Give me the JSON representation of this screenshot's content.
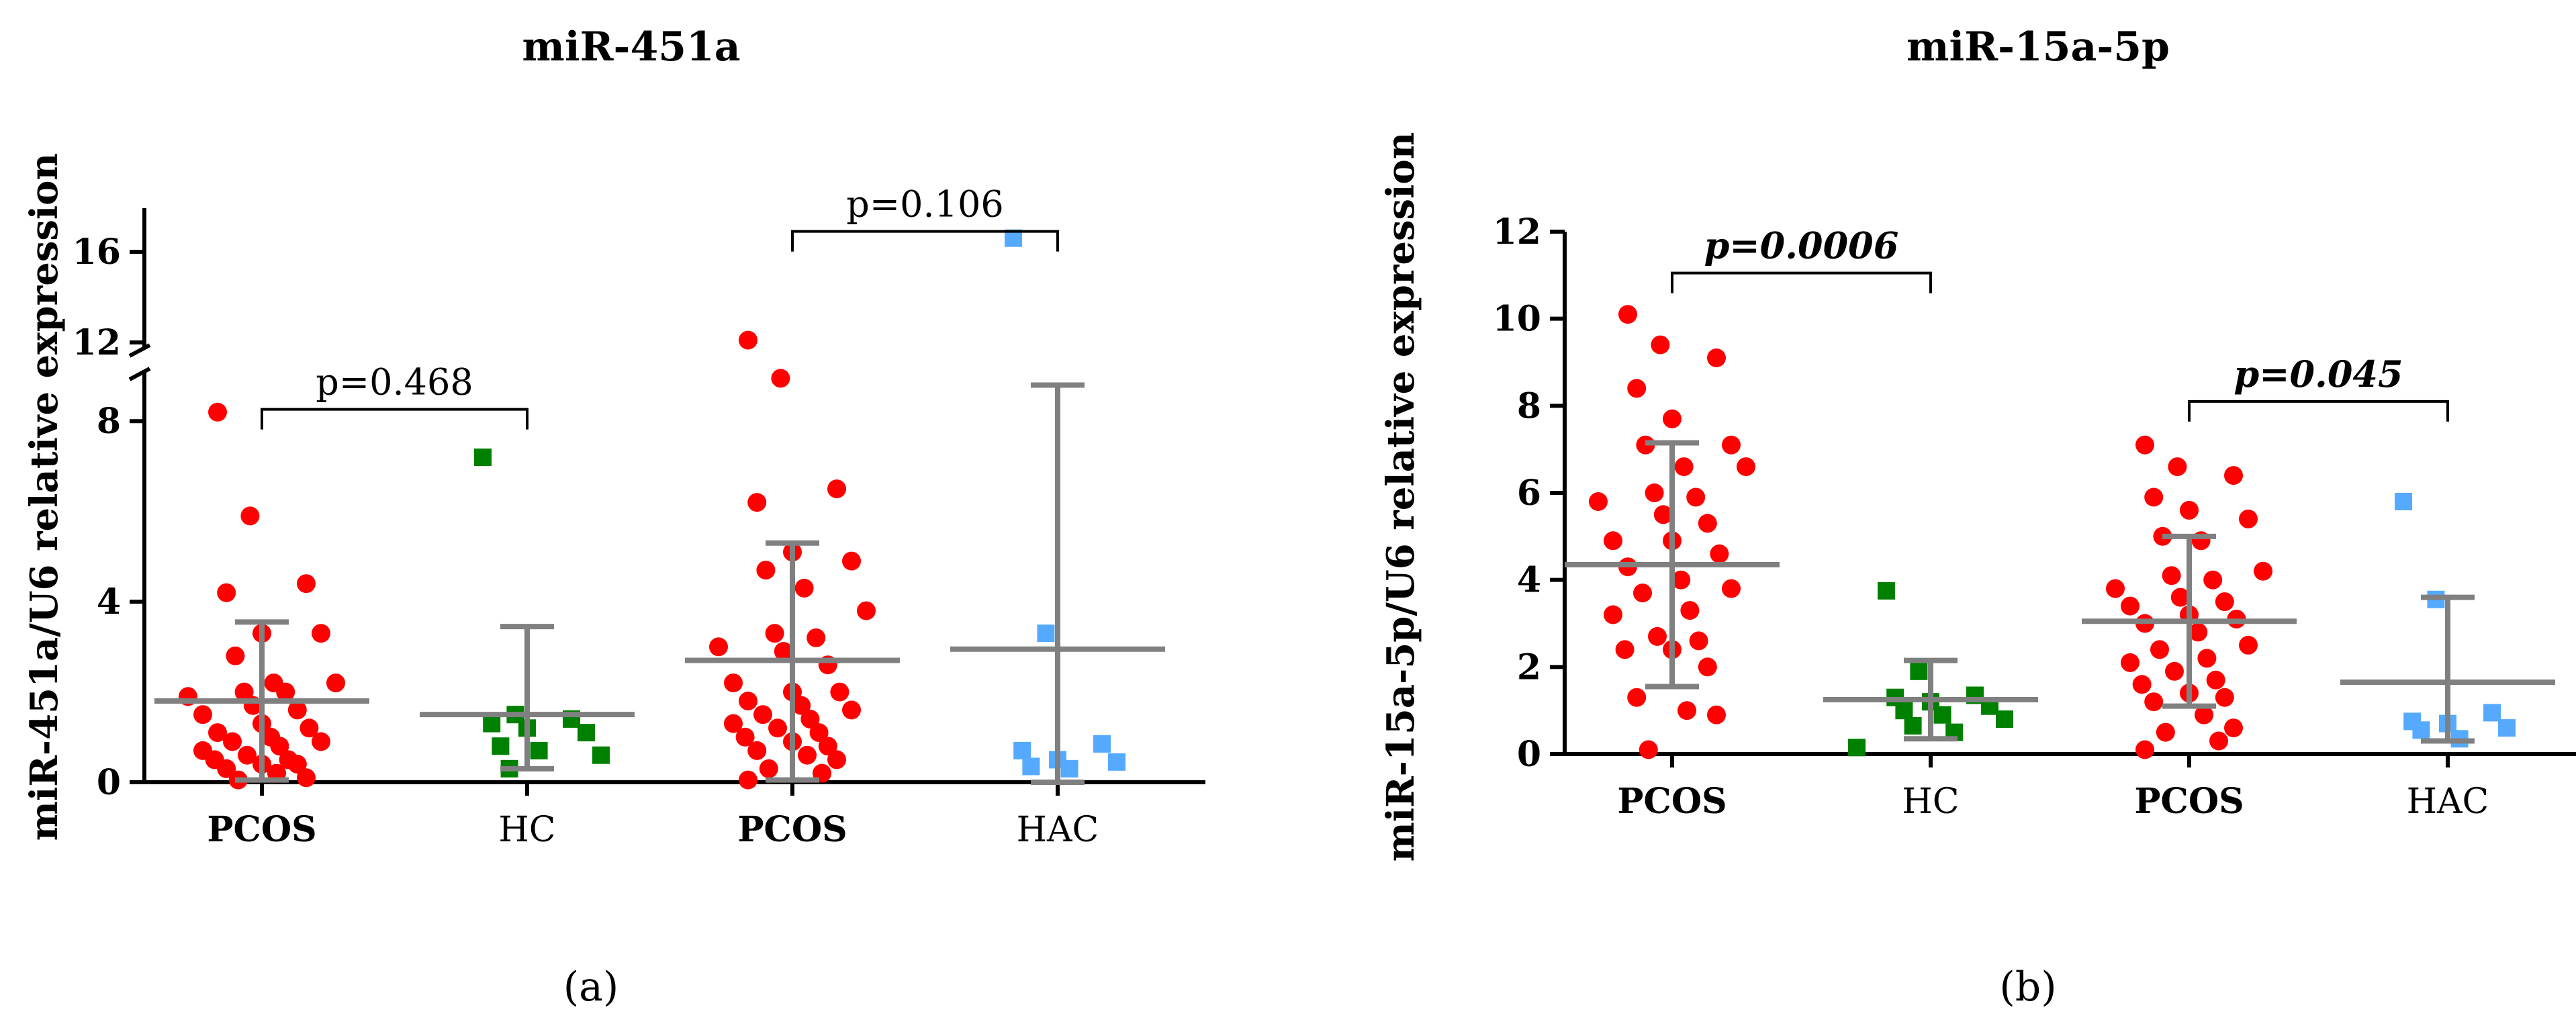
{
  "figure": {
    "panel_labels": [
      "(a)",
      "(b)"
    ]
  },
  "chart_data": [
    {
      "type": "scatter",
      "title": "miR-451a",
      "ylabel": "miR-451a/U6 relative expression",
      "xlabel": "",
      "ylim": [
        0,
        17.5
      ],
      "axis_break": [
        9,
        12
      ],
      "yticks": [
        0,
        4,
        8,
        12,
        16
      ],
      "grid": false,
      "categories": [
        "PCOS",
        "HC",
        "PCOS",
        "HAC"
      ],
      "bold_categories": [
        true,
        false,
        true,
        false
      ],
      "groups": [
        {
          "category": "PCOS",
          "color": "#ff0000",
          "marker": "circle",
          "mean": 1.8,
          "sd_upper": 3.55,
          "sd_lower": 0.05,
          "values": [
            8.2,
            5.9,
            4.4,
            4.2,
            3.3,
            3.3,
            2.8,
            2.2,
            2.2,
            2.0,
            2.0,
            1.9,
            1.7,
            1.6,
            1.5,
            1.3,
            1.2,
            1.1,
            1.0,
            0.9,
            0.9,
            0.8,
            0.7,
            0.6,
            0.5,
            0.5,
            0.4,
            0.4,
            0.3,
            0.2,
            0.1,
            0.05
          ]
        },
        {
          "category": "HC",
          "color": "#008000",
          "marker": "square",
          "mean": 1.5,
          "sd_upper": 3.45,
          "sd_lower": 0.3,
          "values": [
            7.2,
            1.5,
            1.4,
            1.3,
            1.2,
            1.1,
            0.8,
            0.7,
            0.6,
            0.3
          ]
        },
        {
          "category": "PCOS",
          "color": "#ff0000",
          "marker": "circle",
          "mean": 2.7,
          "sd_upper": 5.3,
          "sd_lower": 0.05,
          "values": [
            12.1,
            8.95,
            6.5,
            6.2,
            5.1,
            4.9,
            4.7,
            4.3,
            3.8,
            3.3,
            3.2,
            3.0,
            2.9,
            2.6,
            2.2,
            2.0,
            2.0,
            1.8,
            1.7,
            1.6,
            1.5,
            1.4,
            1.3,
            1.2,
            1.1,
            1.0,
            0.9,
            0.8,
            0.7,
            0.6,
            0.5,
            0.3,
            0.2,
            0.05
          ]
        },
        {
          "category": "HAC",
          "color": "#55aaff",
          "marker": "square",
          "mean": 2.95,
          "sd_upper": 8.8,
          "sd_lower": 0.0,
          "values": [
            16.6,
            3.3,
            0.85,
            0.7,
            0.5,
            0.45,
            0.35,
            0.3
          ]
        }
      ],
      "comparisons": [
        {
          "between": [
            0,
            1
          ],
          "label": "p=0.468",
          "y": 9.05
        },
        {
          "between": [
            2,
            3
          ],
          "label": "p=0.106",
          "y": 16.9
        }
      ]
    },
    {
      "type": "scatter",
      "title": "miR-15a-5p",
      "ylabel": "miR-15a-5p/U6 relative expression",
      "xlabel": "",
      "ylim": [
        0,
        12
      ],
      "yticks": [
        0,
        2,
        4,
        6,
        8,
        10,
        12
      ],
      "grid": false,
      "categories": [
        "PCOS",
        "HC",
        "PCOS",
        "HAC"
      ],
      "bold_categories": [
        true,
        false,
        true,
        false
      ],
      "groups": [
        {
          "category": "PCOS",
          "color": "#ff0000",
          "marker": "circle",
          "mean": 4.35,
          "sd_upper": 7.15,
          "sd_lower": 1.55,
          "values": [
            10.1,
            9.4,
            9.1,
            8.4,
            7.7,
            7.1,
            7.1,
            6.6,
            6.6,
            6.0,
            5.9,
            5.8,
            5.5,
            5.3,
            4.9,
            4.9,
            4.6,
            4.3,
            4.0,
            3.8,
            3.7,
            3.3,
            3.2,
            2.7,
            2.6,
            2.4,
            2.4,
            2.0,
            1.3,
            1.0,
            0.9,
            0.1
          ]
        },
        {
          "category": "HC",
          "color": "#008000",
          "marker": "square",
          "mean": 1.25,
          "sd_upper": 2.15,
          "sd_lower": 0.35,
          "values": [
            3.75,
            1.9,
            1.35,
            1.3,
            1.2,
            1.1,
            1.0,
            0.9,
            0.8,
            0.65,
            0.5,
            0.15
          ]
        },
        {
          "category": "PCOS",
          "color": "#ff0000",
          "marker": "circle",
          "mean": 3.05,
          "sd_upper": 5.0,
          "sd_lower": 1.1,
          "values": [
            7.1,
            6.6,
            6.4,
            5.9,
            5.6,
            5.4,
            5.0,
            4.9,
            4.2,
            4.1,
            4.0,
            3.8,
            3.6,
            3.5,
            3.4,
            3.2,
            3.1,
            3.0,
            2.8,
            2.5,
            2.4,
            2.2,
            2.1,
            1.9,
            1.7,
            1.6,
            1.4,
            1.3,
            1.2,
            0.9,
            0.6,
            0.5,
            0.3,
            0.1
          ]
        },
        {
          "category": "HAC",
          "color": "#55aaff",
          "marker": "square",
          "mean": 1.65,
          "sd_upper": 3.6,
          "sd_lower": 0.3,
          "values": [
            5.8,
            3.55,
            0.95,
            0.75,
            0.7,
            0.6,
            0.55,
            0.35
          ]
        }
      ],
      "comparisons": [
        {
          "between": [
            0,
            1
          ],
          "label": "p=0.0006",
          "bold": true,
          "y": 11.05
        },
        {
          "between": [
            2,
            3
          ],
          "label": "p=0.045",
          "bold": true,
          "y": 8.1
        }
      ]
    }
  ]
}
